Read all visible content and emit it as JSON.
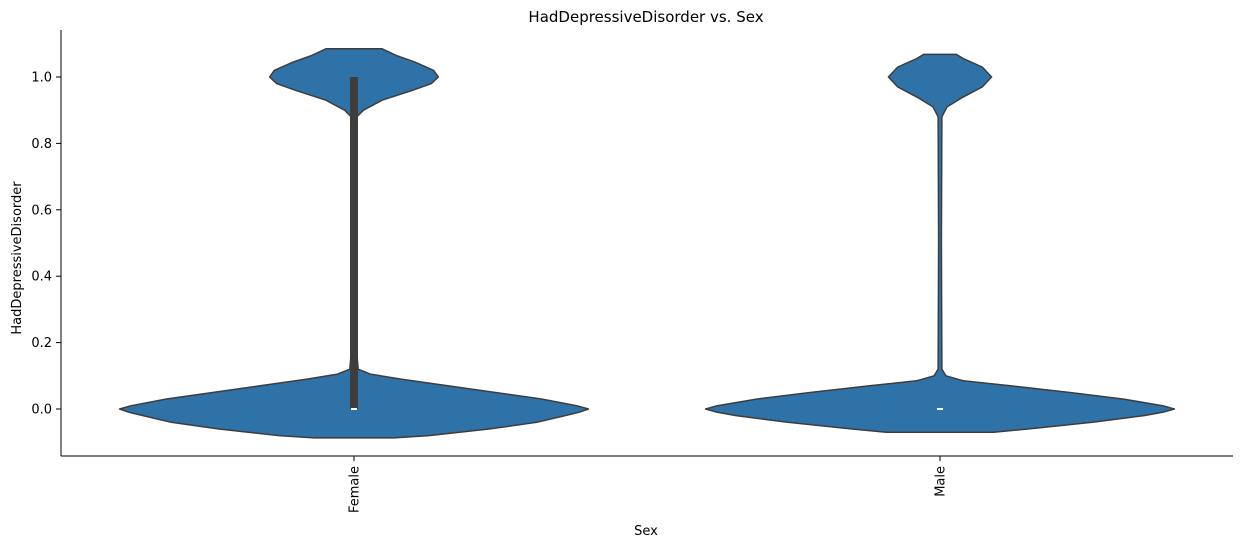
{
  "chart_data": {
    "type": "violin",
    "title": "HadDepressiveDisorder vs. Sex",
    "xlabel": "Sex",
    "ylabel": "HadDepressiveDisorder",
    "categories": [
      "Female",
      "Male"
    ],
    "ylim": [
      -0.14,
      1.14
    ],
    "yticks": [
      0.0,
      0.2,
      0.4,
      0.6,
      0.8,
      1.0
    ],
    "ytick_labels": [
      "0.0",
      "0.2",
      "0.4",
      "0.6",
      "0.8",
      "1.0"
    ],
    "fill_color": "#2f72a8",
    "edge_color": "#3d3d3d",
    "grid": false,
    "violins": [
      {
        "category": "Female",
        "median": 0.0,
        "q1": 0.0,
        "q3": 1.0,
        "density_profile": [
          [
            -0.087,
            0.17
          ],
          [
            -0.08,
            0.32
          ],
          [
            -0.06,
            0.58
          ],
          [
            -0.04,
            0.78
          ],
          [
            -0.02,
            0.9
          ],
          [
            -0.01,
            0.96
          ],
          [
            0.0,
            1.0
          ],
          [
            0.01,
            0.95
          ],
          [
            0.03,
            0.8
          ],
          [
            0.05,
            0.6
          ],
          [
            0.07,
            0.4
          ],
          [
            0.09,
            0.2
          ],
          [
            0.105,
            0.07
          ],
          [
            0.12,
            0.018
          ],
          [
            0.2,
            0.008
          ],
          [
            0.6,
            0.008
          ],
          [
            0.88,
            0.012
          ],
          [
            0.9,
            0.04
          ],
          [
            0.93,
            0.12
          ],
          [
            0.96,
            0.25
          ],
          [
            0.98,
            0.33
          ],
          [
            1.0,
            0.36
          ],
          [
            1.02,
            0.34
          ],
          [
            1.045,
            0.26
          ],
          [
            1.065,
            0.18
          ],
          [
            1.085,
            0.12
          ]
        ]
      },
      {
        "category": "Male",
        "median": 0.0,
        "q1": 0.0,
        "q3": 0.0,
        "density_profile": [
          [
            -0.07,
            0.23
          ],
          [
            -0.06,
            0.38
          ],
          [
            -0.04,
            0.65
          ],
          [
            -0.02,
            0.87
          ],
          [
            -0.01,
            0.95
          ],
          [
            0.0,
            1.0
          ],
          [
            0.01,
            0.95
          ],
          [
            0.03,
            0.78
          ],
          [
            0.05,
            0.55
          ],
          [
            0.07,
            0.3
          ],
          [
            0.085,
            0.1
          ],
          [
            0.1,
            0.025
          ],
          [
            0.12,
            0.008
          ],
          [
            0.5,
            0.006
          ],
          [
            0.88,
            0.008
          ],
          [
            0.91,
            0.03
          ],
          [
            0.94,
            0.1
          ],
          [
            0.97,
            0.18
          ],
          [
            1.0,
            0.22
          ],
          [
            1.03,
            0.18
          ],
          [
            1.055,
            0.1
          ],
          [
            1.068,
            0.07
          ]
        ]
      }
    ]
  }
}
